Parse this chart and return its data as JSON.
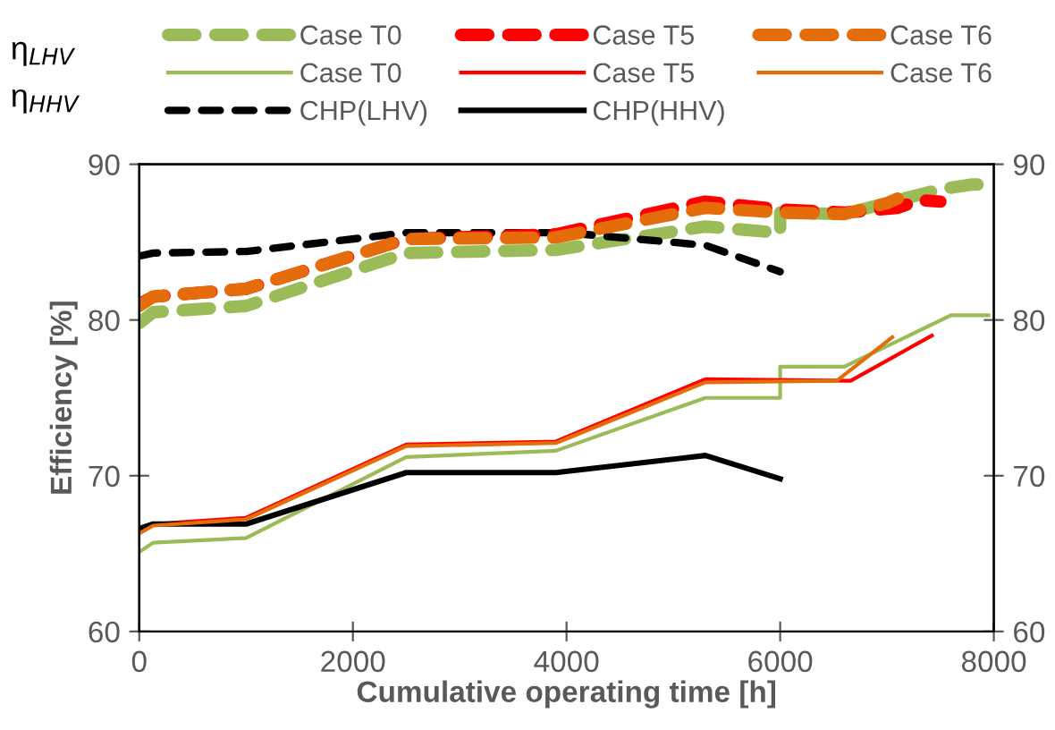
{
  "chart_data": {
    "type": "line",
    "xlabel": "Cumulative operating time [h]",
    "ylabel": "Efficiency [%]",
    "xlim": [
      0,
      8000
    ],
    "xticks": [
      0,
      2000,
      4000,
      6000,
      8000
    ],
    "ylim": [
      60,
      90
    ],
    "yticks": [
      60,
      70,
      80,
      90
    ],
    "y2lim": [
      60,
      90
    ],
    "y2ticks": [
      60,
      70,
      80,
      90
    ],
    "grid": false,
    "legend": "top",
    "marker": "none",
    "annotations": [
      "η$_{LHV}$",
      "η$_{HHV}$"
    ],
    "series": [
      {
        "name": "Case T0",
        "color": "#9bbb59",
        "line_style": "dashed",
        "x": [
          0,
          130,
          1000,
          2500,
          3900,
          5300,
          6000,
          6000,
          6600,
          7500,
          7800,
          8000
        ],
        "values": [
          79.8,
          80.5,
          80.9,
          84.3,
          84.5,
          86.0,
          85.6,
          86.9,
          86.8,
          88.4,
          88.7,
          88.7
        ]
      },
      {
        "name": "Case T0",
        "color": "#9bbb59",
        "line_style": "solid",
        "x": [
          0,
          130,
          1000,
          2500,
          3900,
          5300,
          6000,
          6000,
          6600,
          7600,
          7950
        ],
        "values": [
          65.1,
          65.7,
          66.0,
          71.2,
          71.6,
          75.0,
          75.0,
          77.0,
          77.0,
          80.3,
          80.3
        ]
      },
      {
        "name": "CHP(LHV)",
        "color": "#000000",
        "line_style": "dashed",
        "x": [
          0,
          130,
          1000,
          2500,
          4000,
          5300,
          6000
        ],
        "values": [
          84.1,
          84.3,
          84.4,
          85.6,
          85.6,
          84.8,
          83.1
        ]
      },
      {
        "name": "Case T5",
        "color": "#ff0000",
        "line_style": "dashed",
        "x": [
          0,
          130,
          1000,
          2500,
          3900,
          5300,
          6000,
          6600,
          7100,
          7300,
          7500
        ],
        "values": [
          81.0,
          81.5,
          82.0,
          85.2,
          85.5,
          87.6,
          87.1,
          86.9,
          87.2,
          87.7,
          87.6
        ]
      },
      {
        "name": "Case T5",
        "color": "#ff0000",
        "line_style": "solid",
        "x": [
          0,
          130,
          1000,
          2500,
          3900,
          5300,
          6660,
          7420
        ],
        "values": [
          66.4,
          66.9,
          67.3,
          72.0,
          72.2,
          76.2,
          76.1,
          79.0
        ]
      },
      {
        "name": "CHP(HHV)",
        "color": "#000000",
        "line_style": "solid",
        "x": [
          0,
          130,
          1000,
          2500,
          3900,
          5300,
          6000
        ],
        "values": [
          66.6,
          66.9,
          66.9,
          70.2,
          70.2,
          71.3,
          69.8
        ]
      },
      {
        "name": "Case T6",
        "color": "#e46c0a",
        "line_style": "dashed",
        "x": [
          0,
          130,
          1000,
          2500,
          3900,
          5300,
          6000,
          6600,
          7000,
          7100
        ],
        "values": [
          80.9,
          81.5,
          82.0,
          85.2,
          85.3,
          87.2,
          86.9,
          86.8,
          87.5,
          87.8
        ]
      },
      {
        "name": "Case T6",
        "color": "#e46c0a",
        "line_style": "solid",
        "x": [
          0,
          130,
          1000,
          2500,
          3900,
          5300,
          6530,
          7050
        ],
        "values": [
          66.3,
          66.8,
          67.2,
          71.9,
          72.1,
          76.0,
          76.1,
          78.9
        ]
      }
    ]
  }
}
